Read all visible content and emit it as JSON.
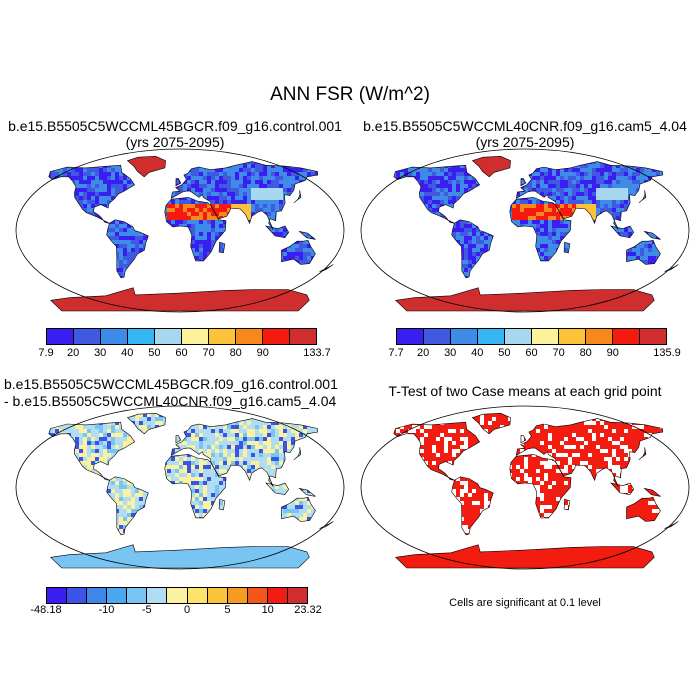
{
  "title": "ANN FSR (W/m^2)",
  "panels": [
    {
      "line1": "b.e15.B5505C5WCCML45BGCR.f09_g16.control.001",
      "line2": "(yrs 2075-2095)",
      "colorbar": {
        "colors": [
          "#3a1df0",
          "#3f5ae0",
          "#3e8be8",
          "#36b6f2",
          "#a8d8ef",
          "#fcf29a",
          "#fcc23a",
          "#f7891c",
          "#f41a10",
          "#d02e2e"
        ],
        "labels": [
          "7.9",
          "20",
          "30",
          "40",
          "50",
          "60",
          "70",
          "80",
          "90",
          "133.7"
        ]
      }
    },
    {
      "line1": "b.e15.B5505C5WCCML40CNR.f09_g16.cam5_4.04",
      "line2": "(yrs 2075-2095)",
      "colorbar": {
        "colors": [
          "#3a1df0",
          "#3f5ae0",
          "#3e8be8",
          "#36b6f2",
          "#a8d8ef",
          "#fcf29a",
          "#fcc23a",
          "#f7891c",
          "#f41a10",
          "#d02e2e"
        ],
        "labels": [
          "7.7",
          "20",
          "30",
          "40",
          "50",
          "60",
          "70",
          "80",
          "90",
          "135.9"
        ]
      }
    },
    {
      "line1": "b.e15.B5505C5WCCML45BGCR.f09_g16.control.001",
      "line2": "- b.e15.B5505C5WCCML40CNR.f09_g16.cam5_4.04",
      "colorbar": {
        "colors": [
          "#3a1df0",
          "#3d53e6",
          "#3e86ea",
          "#4ba7ee",
          "#78c4f2",
          "#b1ddf3",
          "#fbf2a0",
          "#fce36a",
          "#fbc43a",
          "#f79a22",
          "#f4561a",
          "#f21c10",
          "#d02e2e"
        ],
        "labels": [
          "-48.18",
          "-10",
          "-5",
          "0",
          "5",
          "10",
          "23.32"
        ]
      }
    },
    {
      "line1": "T-Test of two Case means at each grid point",
      "note": "Cells are significant at 0.1 level"
    }
  ]
}
